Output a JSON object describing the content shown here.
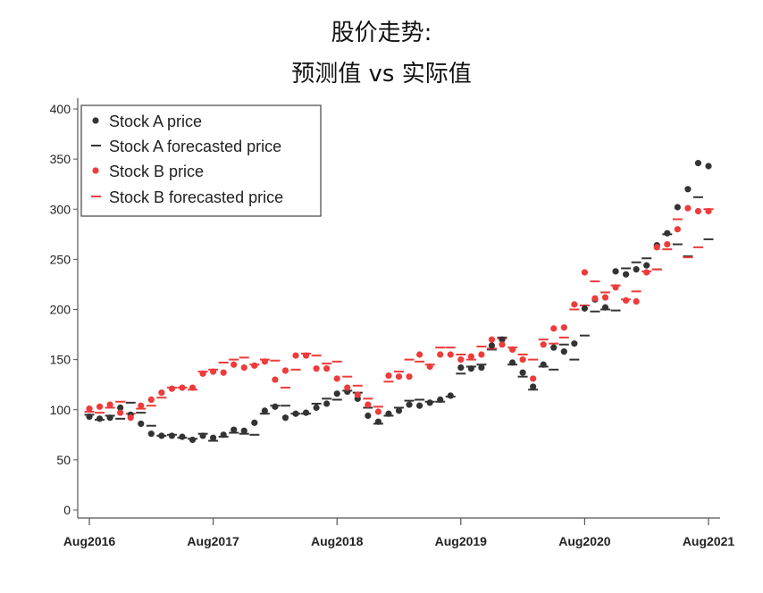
{
  "chart_data": {
    "type": "scatter",
    "title_line1": "股价走势:",
    "title_line2": "预测值 vs 实际值",
    "xlabel": "",
    "ylabel": "",
    "xlim": [
      "2016-08",
      "2021-08"
    ],
    "ylim": [
      0,
      400
    ],
    "x_ticks": [
      "Aug2016",
      "Aug2017",
      "Aug2018",
      "Aug2019",
      "Aug2020",
      "Aug2021"
    ],
    "y_ticks": [
      0,
      50,
      100,
      150,
      200,
      250,
      300,
      350,
      400
    ],
    "legend_position": "top-left",
    "grid": false,
    "colors": {
      "stockA": "#333333",
      "stockB": "#ee3b3b"
    },
    "series": [
      {
        "name": "Stock A price",
        "marker": "dot",
        "color": "#333333",
        "x": [
          "2016-08",
          "2016-09",
          "2016-10",
          "2016-11",
          "2016-12",
          "2017-01",
          "2017-02",
          "2017-03",
          "2017-04",
          "2017-05",
          "2017-06",
          "2017-07",
          "2017-08",
          "2017-09",
          "2017-10",
          "2017-11",
          "2017-12",
          "2018-01",
          "2018-02",
          "2018-03",
          "2018-04",
          "2018-05",
          "2018-06",
          "2018-07",
          "2018-08",
          "2018-09",
          "2018-10",
          "2018-11",
          "2018-12",
          "2019-01",
          "2019-02",
          "2019-03",
          "2019-04",
          "2019-05",
          "2019-06",
          "2019-07",
          "2019-08",
          "2019-09",
          "2019-10",
          "2019-11",
          "2019-12",
          "2020-01",
          "2020-02",
          "2020-03",
          "2020-04",
          "2020-05",
          "2020-06",
          "2020-07",
          "2020-08",
          "2020-09",
          "2020-10",
          "2020-11",
          "2020-12",
          "2021-01",
          "2021-02",
          "2021-03",
          "2021-04",
          "2021-05",
          "2021-06",
          "2021-07",
          "2021-08"
        ],
        "y": [
          93,
          91,
          92,
          102,
          95,
          86,
          76,
          74,
          74,
          73,
          70,
          74,
          72,
          75,
          80,
          79,
          87,
          99,
          103,
          92,
          96,
          97,
          102,
          106,
          116,
          118,
          111,
          94,
          88,
          96,
          99,
          105,
          104,
          107,
          110,
          114,
          142,
          141,
          142,
          164,
          170,
          147,
          137,
          123,
          145,
          162,
          158,
          166,
          201,
          210,
          202,
          238,
          235,
          240,
          244,
          264,
          276,
          302,
          320,
          346,
          343
        ]
      },
      {
        "name": "Stock A forecasted price",
        "marker": "dash",
        "color": "#333333",
        "x": [
          "2016-08",
          "2016-09",
          "2016-10",
          "2016-11",
          "2016-12",
          "2017-01",
          "2017-02",
          "2017-03",
          "2017-04",
          "2017-05",
          "2017-06",
          "2017-07",
          "2017-08",
          "2017-09",
          "2017-10",
          "2017-11",
          "2017-12",
          "2018-01",
          "2018-02",
          "2018-03",
          "2018-04",
          "2018-05",
          "2018-06",
          "2018-07",
          "2018-08",
          "2018-09",
          "2018-10",
          "2018-11",
          "2018-12",
          "2019-01",
          "2019-02",
          "2019-03",
          "2019-04",
          "2019-05",
          "2019-06",
          "2019-07",
          "2019-08",
          "2019-09",
          "2019-10",
          "2019-11",
          "2019-12",
          "2020-01",
          "2020-02",
          "2020-03",
          "2020-04",
          "2020-05",
          "2020-06",
          "2020-07",
          "2020-08",
          "2020-09",
          "2020-10",
          "2020-11",
          "2020-12",
          "2021-01",
          "2021-02",
          "2021-03",
          "2021-04",
          "2021-05",
          "2021-06",
          "2021-07",
          "2021-08"
        ],
        "y": [
          95,
          90,
          94,
          91,
          107,
          97,
          84,
          74,
          75,
          72,
          71,
          76,
          69,
          73,
          77,
          76,
          75,
          96,
          104,
          104,
          96,
          96,
          106,
          111,
          110,
          119,
          117,
          102,
          86,
          94,
          102,
          109,
          110,
          108,
          108,
          113,
          136,
          143,
          145,
          160,
          172,
          145,
          133,
          120,
          143,
          140,
          165,
          150,
          174,
          198,
          200,
          199,
          241,
          247,
          251,
          240,
          275,
          265,
          253,
          312,
          270
        ]
      },
      {
        "name": "Stock B price",
        "marker": "dot",
        "color": "#ee3b3b",
        "x": [
          "2016-08",
          "2016-09",
          "2016-10",
          "2016-11",
          "2016-12",
          "2017-01",
          "2017-02",
          "2017-03",
          "2017-04",
          "2017-05",
          "2017-06",
          "2017-07",
          "2017-08",
          "2017-09",
          "2017-10",
          "2017-11",
          "2017-12",
          "2018-01",
          "2018-02",
          "2018-03",
          "2018-04",
          "2018-05",
          "2018-06",
          "2018-07",
          "2018-08",
          "2018-09",
          "2018-10",
          "2018-11",
          "2018-12",
          "2019-01",
          "2019-02",
          "2019-03",
          "2019-04",
          "2019-05",
          "2019-06",
          "2019-07",
          "2019-08",
          "2019-09",
          "2019-10",
          "2019-11",
          "2019-12",
          "2020-01",
          "2020-02",
          "2020-03",
          "2020-04",
          "2020-05",
          "2020-06",
          "2020-07",
          "2020-08",
          "2020-09",
          "2020-10",
          "2020-11",
          "2020-12",
          "2021-01",
          "2021-02",
          "2021-03",
          "2021-04",
          "2021-05",
          "2021-06",
          "2021-07",
          "2021-08"
        ],
        "y": [
          101,
          103,
          105,
          97,
          92,
          104,
          110,
          117,
          121,
          122,
          122,
          136,
          138,
          137,
          145,
          142,
          144,
          148,
          130,
          139,
          154,
          154,
          141,
          141,
          131,
          122,
          115,
          105,
          98,
          134,
          133,
          133,
          155,
          143,
          155,
          155,
          150,
          153,
          155,
          170,
          165,
          160,
          150,
          131,
          165,
          181,
          182,
          205,
          237,
          211,
          212,
          222,
          209,
          208,
          237,
          262,
          265,
          280,
          301,
          298,
          298
        ]
      },
      {
        "name": "Stock B forecasted price",
        "marker": "dash",
        "color": "#ee3b3b",
        "x": [
          "2016-08",
          "2016-09",
          "2016-10",
          "2016-11",
          "2016-12",
          "2017-01",
          "2017-02",
          "2017-03",
          "2017-04",
          "2017-05",
          "2017-06",
          "2017-07",
          "2017-08",
          "2017-09",
          "2017-10",
          "2017-11",
          "2017-12",
          "2018-01",
          "2018-02",
          "2018-03",
          "2018-04",
          "2018-05",
          "2018-06",
          "2018-07",
          "2018-08",
          "2018-09",
          "2018-10",
          "2018-11",
          "2018-12",
          "2019-01",
          "2019-02",
          "2019-03",
          "2019-04",
          "2019-05",
          "2019-06",
          "2019-07",
          "2019-08",
          "2019-09",
          "2019-10",
          "2019-11",
          "2019-12",
          "2020-01",
          "2020-02",
          "2020-03",
          "2020-04",
          "2020-05",
          "2020-06",
          "2020-07",
          "2020-08",
          "2020-09",
          "2020-10",
          "2020-11",
          "2020-12",
          "2021-01",
          "2021-02",
          "2021-03",
          "2021-04",
          "2021-05",
          "2021-06",
          "2021-07",
          "2021-08"
        ],
        "y": [
          98,
          97,
          102,
          108,
          96,
          101,
          104,
          112,
          122,
          122,
          120,
          138,
          140,
          147,
          150,
          152,
          145,
          150,
          149,
          122,
          140,
          156,
          154,
          146,
          148,
          133,
          124,
          111,
          103,
          128,
          138,
          150,
          148,
          145,
          162,
          162,
          155,
          150,
          163,
          161,
          171,
          162,
          155,
          150,
          170,
          166,
          172,
          200,
          204,
          228,
          217,
          224,
          210,
          218,
          238,
          240,
          260,
          290,
          252,
          262,
          300
        ]
      }
    ]
  }
}
